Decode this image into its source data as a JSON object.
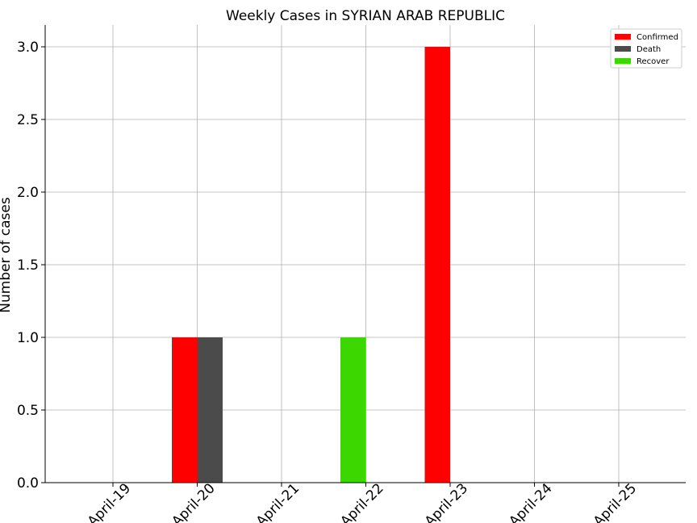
{
  "chart_data": {
    "type": "bar",
    "title": "Weekly Cases in SYRIAN ARAB REPUBLIC",
    "xlabel": "",
    "ylabel": "Number of cases",
    "categories": [
      "April-19",
      "April-20",
      "April-21",
      "April-22",
      "April-23",
      "April-24",
      "April-25"
    ],
    "series": [
      {
        "name": "Confirmed",
        "color": "#ff0000",
        "values": [
          0,
          1,
          0,
          0,
          3,
          0,
          0
        ]
      },
      {
        "name": "Death",
        "color": "#4b4b4b",
        "values": [
          0,
          1,
          0,
          0,
          0,
          0,
          0
        ]
      },
      {
        "name": "Recover",
        "color": "#3cd600",
        "values": [
          0,
          0,
          0,
          1,
          0,
          0,
          0
        ]
      }
    ],
    "ylim": [
      0,
      3.15
    ],
    "yticks": [
      "0.0",
      "0.5",
      "1.0",
      "1.5",
      "2.0",
      "2.5",
      "3.0"
    ],
    "grid": true,
    "legend_position": "top-right"
  }
}
